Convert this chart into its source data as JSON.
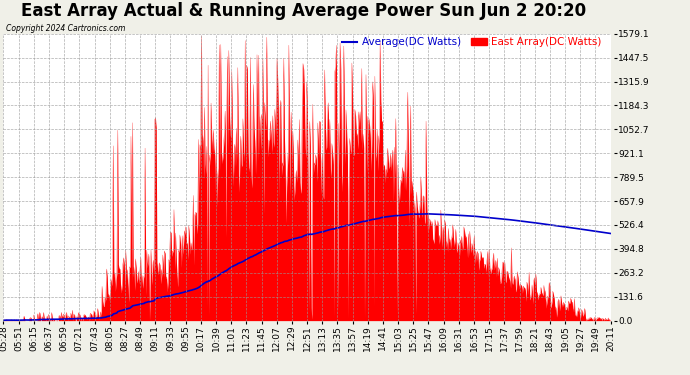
{
  "title": "East Array Actual & Running Average Power Sun Jun 2 20:20",
  "copyright": "Copyright 2024 Cartronics.com",
  "legend_avg": "Average(DC Watts)",
  "legend_east": "East Array(DC Watts)",
  "ylabel_right_ticks": [
    0.0,
    131.6,
    263.2,
    394.8,
    526.4,
    657.9,
    789.5,
    921.1,
    1052.7,
    1184.3,
    1315.9,
    1447.5,
    1579.1
  ],
  "ymin": 0.0,
  "ymax": 1579.1,
  "background_color": "#f0f0e8",
  "plot_bg_color": "#ffffff",
  "grid_color": "#999999",
  "bar_color": "#ff0000",
  "avg_color": "#0000cc",
  "title_fontsize": 12,
  "tick_fontsize": 6.5,
  "xtick_labels": [
    "05:28",
    "05:51",
    "06:15",
    "06:37",
    "06:59",
    "07:21",
    "07:43",
    "08:05",
    "08:27",
    "08:49",
    "09:11",
    "09:33",
    "09:55",
    "10:17",
    "10:39",
    "11:01",
    "11:23",
    "11:45",
    "12:07",
    "12:29",
    "12:51",
    "13:13",
    "13:35",
    "13:57",
    "14:19",
    "14:41",
    "15:03",
    "15:25",
    "15:47",
    "16:09",
    "16:31",
    "16:53",
    "17:15",
    "17:37",
    "17:59",
    "18:21",
    "18:43",
    "19:05",
    "19:27",
    "19:49",
    "20:11"
  ],
  "num_points": 820
}
